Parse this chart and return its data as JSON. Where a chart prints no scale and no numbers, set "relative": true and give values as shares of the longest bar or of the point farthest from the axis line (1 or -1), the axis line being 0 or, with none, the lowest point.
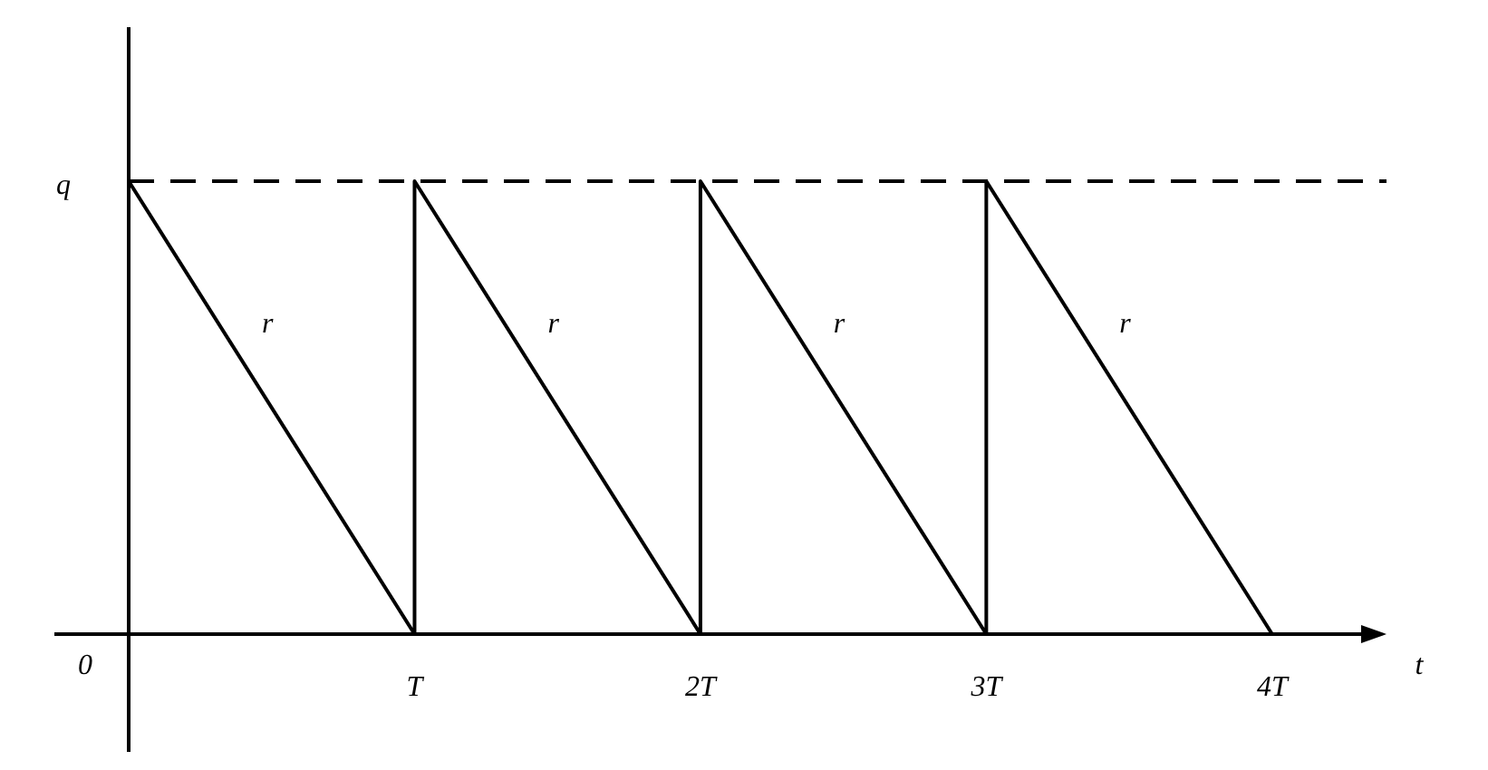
{
  "chart_data": {
    "type": "line",
    "xlabel": "t",
    "x": [
      0,
      1,
      1,
      2,
      2,
      3,
      3,
      4
    ],
    "series": [
      {
        "color": "#000000",
        "values": [
          1,
          0,
          1,
          0,
          1,
          0,
          1,
          0
        ]
      }
    ],
    "relative": true,
    "xlim": [
      -0.26,
      4.4
    ],
    "xticks": [
      {
        "value": 1,
        "label": "T"
      },
      {
        "value": 2,
        "label": "2T"
      },
      {
        "value": 3,
        "label": "3T"
      },
      {
        "value": 4,
        "label": "4T"
      }
    ],
    "ref_lines": [
      {
        "axis": "y",
        "value": 1,
        "label": "q",
        "line_style": "dashed",
        "color": "#000000"
      }
    ],
    "annotations": [
      "r",
      "r",
      "r",
      "r",
      "0"
    ],
    "marker": "none",
    "line_style": "solid"
  }
}
